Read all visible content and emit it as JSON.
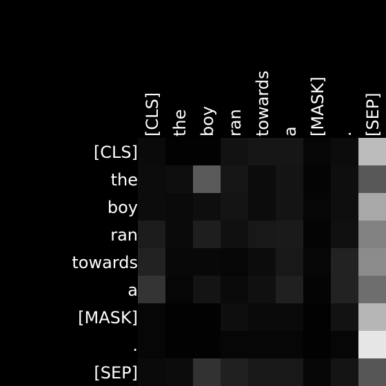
{
  "chart_data": {
    "type": "heatmap",
    "colormap": "gray",
    "background": "#000000",
    "x_labels": [
      "[CLS]",
      "the",
      "boy",
      "ran",
      "towards",
      "a",
      "[MASK]",
      ".",
      "[SEP]"
    ],
    "y_labels": [
      "[CLS]",
      "the",
      "boy",
      "ran",
      "towards",
      "a",
      "[MASK]",
      ".",
      "[SEP]"
    ],
    "value_range": [
      0,
      255
    ],
    "values": [
      [
        10,
        2,
        2,
        18,
        22,
        22,
        6,
        12,
        188
      ],
      [
        12,
        14,
        90,
        22,
        12,
        20,
        4,
        14,
        88
      ],
      [
        12,
        10,
        14,
        20,
        12,
        20,
        6,
        14,
        168
      ],
      [
        28,
        10,
        30,
        16,
        24,
        26,
        4,
        16,
        130
      ],
      [
        34,
        8,
        8,
        6,
        12,
        24,
        6,
        34,
        140
      ],
      [
        52,
        6,
        20,
        10,
        16,
        32,
        4,
        34,
        110
      ],
      [
        6,
        2,
        2,
        14,
        10,
        10,
        2,
        18,
        182
      ],
      [
        6,
        2,
        2,
        6,
        6,
        6,
        2,
        6,
        230
      ],
      [
        10,
        12,
        50,
        32,
        24,
        24,
        6,
        20,
        86
      ]
    ]
  }
}
